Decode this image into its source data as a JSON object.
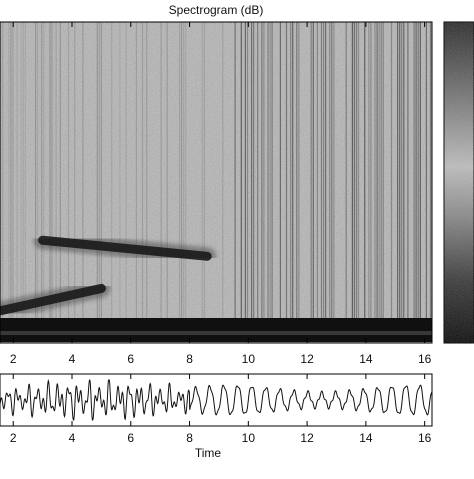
{
  "charts": {
    "spectrogram": {
      "title": "Spectrogram (dB)",
      "x_ticks": [
        "2",
        "4",
        "6",
        "8",
        "10",
        "12",
        "14",
        "16"
      ],
      "x_tick_values": [
        2,
        4,
        6,
        8,
        10,
        12,
        14,
        16
      ],
      "x_range": [
        1.55,
        16.25
      ],
      "colormap": "grayscale"
    },
    "waveform": {
      "xlabel": "Time",
      "x_ticks": [
        "2",
        "4",
        "6",
        "8",
        "10",
        "12",
        "14",
        "16"
      ],
      "x_tick_values": [
        2,
        4,
        6,
        8,
        10,
        12,
        14,
        16
      ],
      "x_range": [
        1.55,
        16.25
      ]
    }
  },
  "chart_data": [
    {
      "type": "heatmap",
      "title": "Spectrogram (dB)",
      "xlabel": "",
      "ylabel": "",
      "x_ticks": [
        2,
        4,
        6,
        8,
        10,
        12,
        14,
        16
      ],
      "xlim": [
        1.55,
        16.25
      ],
      "features": [
        {
          "kind": "tone-ridge",
          "t_start": 1.55,
          "t_end": 5.0,
          "level_start": 0.1,
          "level_end": 0.17
        },
        {
          "kind": "tone-ridge",
          "t_start": 3.0,
          "t_end": 8.6,
          "level_start": 0.32,
          "level_end": 0.27
        },
        {
          "kind": "low-frequency-band",
          "t_start": 1.55,
          "t_end": 16.25,
          "level": 0.03
        }
      ],
      "colorbar": {
        "colormap": "grayscale",
        "tick_labels": []
      }
    },
    {
      "type": "line",
      "title": "",
      "xlabel": "Time",
      "ylabel": "",
      "x_ticks": [
        2,
        4,
        6,
        8,
        10,
        12,
        14,
        16
      ],
      "xlim": [
        1.55,
        16.25
      ],
      "segments": [
        {
          "t_start": 1.55,
          "t_end": 8.0,
          "character": "irregular, larger amplitude"
        },
        {
          "t_start": 8.0,
          "t_end": 16.25,
          "character": "regular oscillation, ~2.1 cycles per unit"
        }
      ]
    }
  ]
}
